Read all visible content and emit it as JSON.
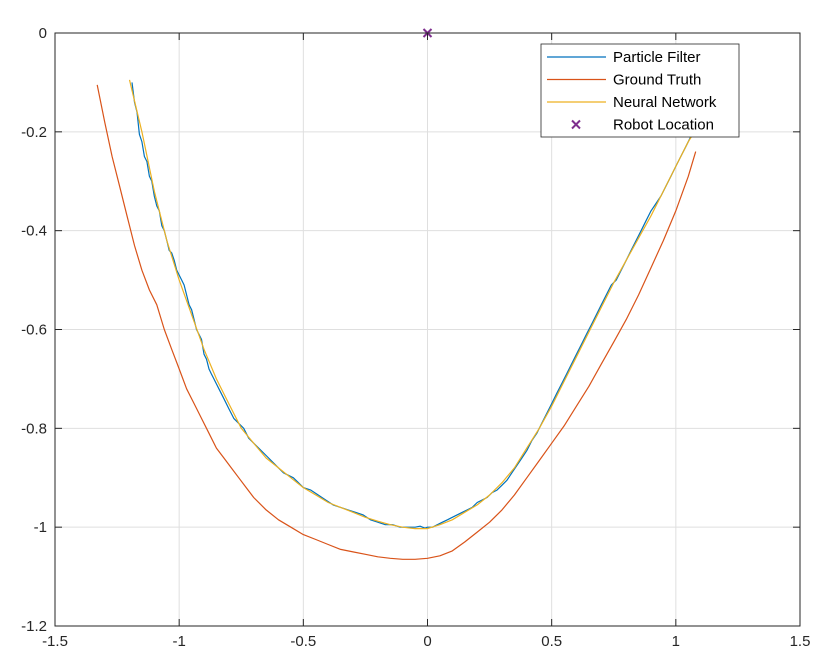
{
  "chart_data": {
    "type": "line",
    "title": "",
    "xlabel": "",
    "ylabel": "",
    "xlim": [
      -1.5,
      1.5
    ],
    "ylim": [
      -1.2,
      0
    ],
    "xticks": [
      -1.5,
      -1,
      -0.5,
      0,
      0.5,
      1,
      1.5
    ],
    "yticks": [
      0,
      -0.2,
      -0.4,
      -0.6,
      -0.8,
      -1,
      -1.2
    ],
    "xtick_labels": [
      "-1.5",
      "-1",
      "-0.5",
      "0",
      "0.5",
      "1",
      "1.5"
    ],
    "ytick_labels": [
      "0",
      "-0.2",
      "-0.4",
      "-0.6",
      "-0.8",
      "-1",
      "-1.2"
    ],
    "grid": true,
    "legend_position": "top-right",
    "series": [
      {
        "name": "Particle Filter",
        "color": "#0072BD",
        "x": [
          -1.19,
          -1.18,
          -1.17,
          -1.16,
          -1.15,
          -1.14,
          -1.13,
          -1.12,
          -1.11,
          -1.1,
          -1.09,
          -1.08,
          -1.07,
          -1.06,
          -1.05,
          -1.04,
          -1.03,
          -1.02,
          -1.01,
          -1.0,
          -0.99,
          -0.98,
          -0.96,
          -0.95,
          -0.94,
          -0.93,
          -0.92,
          -0.91,
          -0.9,
          -0.89,
          -0.88,
          -0.87,
          -0.86,
          -0.85,
          -0.84,
          -0.82,
          -0.8,
          -0.78,
          -0.76,
          -0.74,
          -0.72,
          -0.7,
          -0.68,
          -0.66,
          -0.64,
          -0.62,
          -0.6,
          -0.58,
          -0.56,
          -0.54,
          -0.52,
          -0.5,
          -0.47,
          -0.44,
          -0.41,
          -0.38,
          -0.35,
          -0.32,
          -0.29,
          -0.26,
          -0.23,
          -0.2,
          -0.17,
          -0.14,
          -0.11,
          -0.08,
          -0.05,
          -0.03,
          -0.01,
          0.0,
          0.02,
          0.04,
          0.06,
          0.08,
          0.1,
          0.12,
          0.14,
          0.16,
          0.18,
          0.2,
          0.22,
          0.24,
          0.26,
          0.28,
          0.3,
          0.32,
          0.34,
          0.36,
          0.38,
          0.4,
          0.42,
          0.44,
          0.46,
          0.48,
          0.5,
          0.52,
          0.54,
          0.56,
          0.58,
          0.6,
          0.62,
          0.64,
          0.66,
          0.68,
          0.7,
          0.72,
          0.74,
          0.76,
          0.78,
          0.8,
          0.82,
          0.84,
          0.86,
          0.88,
          0.9,
          0.92,
          0.94,
          0.96,
          0.98,
          1.0,
          1.02,
          1.04,
          1.06,
          1.08,
          1.1
        ],
        "y": [
          -0.1,
          -0.14,
          -0.16,
          -0.205,
          -0.22,
          -0.25,
          -0.26,
          -0.29,
          -0.3,
          -0.33,
          -0.35,
          -0.36,
          -0.39,
          -0.4,
          -0.42,
          -0.44,
          -0.445,
          -0.46,
          -0.48,
          -0.49,
          -0.5,
          -0.51,
          -0.55,
          -0.56,
          -0.58,
          -0.6,
          -0.61,
          -0.62,
          -0.65,
          -0.66,
          -0.68,
          -0.69,
          -0.7,
          -0.71,
          -0.72,
          -0.74,
          -0.76,
          -0.78,
          -0.79,
          -0.8,
          -0.82,
          -0.83,
          -0.84,
          -0.85,
          -0.86,
          -0.87,
          -0.88,
          -0.89,
          -0.895,
          -0.9,
          -0.91,
          -0.92,
          -0.925,
          -0.935,
          -0.945,
          -0.955,
          -0.96,
          -0.965,
          -0.97,
          -0.975,
          -0.985,
          -0.99,
          -0.995,
          -0.995,
          -1.0,
          -1.0,
          -1.0,
          -0.998,
          -1.002,
          -1.0,
          -1.0,
          -0.995,
          -0.99,
          -0.985,
          -0.98,
          -0.975,
          -0.97,
          -0.965,
          -0.96,
          -0.95,
          -0.945,
          -0.94,
          -0.93,
          -0.925,
          -0.915,
          -0.905,
          -0.89,
          -0.875,
          -0.86,
          -0.845,
          -0.825,
          -0.81,
          -0.79,
          -0.77,
          -0.75,
          -0.73,
          -0.71,
          -0.69,
          -0.67,
          -0.65,
          -0.63,
          -0.61,
          -0.59,
          -0.57,
          -0.55,
          -0.53,
          -0.51,
          -0.5,
          -0.48,
          -0.46,
          -0.44,
          -0.42,
          -0.4,
          -0.38,
          -0.36,
          -0.345,
          -0.33,
          -0.31,
          -0.29,
          -0.27,
          -0.25,
          -0.23,
          -0.21,
          -0.19,
          -0.17
        ]
      },
      {
        "name": "Ground Truth",
        "color": "#D95319",
        "x": [
          -1.33,
          -1.3,
          -1.27,
          -1.24,
          -1.21,
          -1.18,
          -1.15,
          -1.12,
          -1.09,
          -1.06,
          -1.03,
          -1.0,
          -0.97,
          -0.94,
          -0.91,
          -0.88,
          -0.85,
          -0.82,
          -0.79,
          -0.76,
          -0.73,
          -0.7,
          -0.65,
          -0.6,
          -0.55,
          -0.5,
          -0.45,
          -0.4,
          -0.35,
          -0.3,
          -0.25,
          -0.2,
          -0.15,
          -0.1,
          -0.05,
          0.0,
          0.05,
          0.1,
          0.15,
          0.2,
          0.25,
          0.3,
          0.35,
          0.4,
          0.45,
          0.5,
          0.55,
          0.6,
          0.65,
          0.7,
          0.75,
          0.8,
          0.85,
          0.9,
          0.95,
          1.0,
          1.05,
          1.08
        ],
        "y": [
          -0.105,
          -0.18,
          -0.25,
          -0.31,
          -0.37,
          -0.43,
          -0.48,
          -0.52,
          -0.55,
          -0.6,
          -0.64,
          -0.68,
          -0.72,
          -0.75,
          -0.78,
          -0.81,
          -0.84,
          -0.86,
          -0.88,
          -0.9,
          -0.92,
          -0.94,
          -0.965,
          -0.985,
          -1.0,
          -1.015,
          -1.025,
          -1.035,
          -1.045,
          -1.05,
          -1.055,
          -1.06,
          -1.063,
          -1.065,
          -1.065,
          -1.063,
          -1.058,
          -1.048,
          -1.03,
          -1.01,
          -0.99,
          -0.965,
          -0.935,
          -0.9,
          -0.865,
          -0.83,
          -0.795,
          -0.755,
          -0.715,
          -0.67,
          -0.625,
          -0.58,
          -0.53,
          -0.475,
          -0.42,
          -0.36,
          -0.29,
          -0.24
        ]
      },
      {
        "name": "Neural Network",
        "color": "#EDB120",
        "x": [
          -1.2,
          -1.15,
          -1.1,
          -1.05,
          -1.0,
          -0.95,
          -0.9,
          -0.85,
          -0.8,
          -0.75,
          -0.7,
          -0.65,
          -0.6,
          -0.55,
          -0.5,
          -0.45,
          -0.4,
          -0.35,
          -0.3,
          -0.25,
          -0.2,
          -0.15,
          -0.1,
          -0.05,
          0.0,
          0.05,
          0.1,
          0.15,
          0.2,
          0.25,
          0.3,
          0.35,
          0.4,
          0.45,
          0.5,
          0.55,
          0.6,
          0.65,
          0.7,
          0.75,
          0.8,
          0.85,
          0.9,
          0.95,
          1.0,
          1.05,
          1.1
        ],
        "y": [
          -0.095,
          -0.2,
          -0.32,
          -0.42,
          -0.5,
          -0.57,
          -0.64,
          -0.7,
          -0.75,
          -0.8,
          -0.83,
          -0.86,
          -0.88,
          -0.9,
          -0.92,
          -0.935,
          -0.95,
          -0.96,
          -0.97,
          -0.98,
          -0.988,
          -0.995,
          -1.0,
          -1.003,
          -1.003,
          -0.995,
          -0.985,
          -0.97,
          -0.955,
          -0.935,
          -0.91,
          -0.88,
          -0.84,
          -0.8,
          -0.755,
          -0.705,
          -0.655,
          -0.605,
          -0.555,
          -0.505,
          -0.46,
          -0.415,
          -0.37,
          -0.32,
          -0.27,
          -0.22,
          -0.18
        ]
      },
      {
        "name": "Robot Location",
        "color": "#7E2F8E",
        "marker": "x",
        "x": [
          0
        ],
        "y": [
          0
        ]
      }
    ]
  }
}
